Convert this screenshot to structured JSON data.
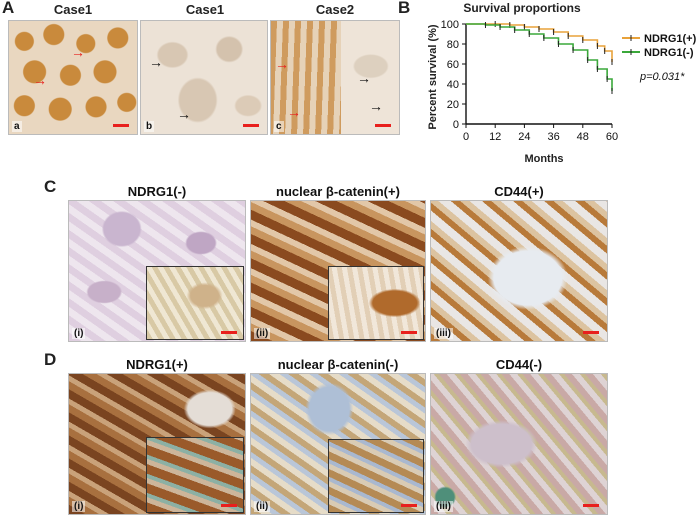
{
  "panel_a": {
    "letter": "A",
    "images": [
      {
        "title": "Case1",
        "sub": "a"
      },
      {
        "title": "Case1",
        "sub": "b"
      },
      {
        "title": "Case2",
        "sub": "c"
      }
    ]
  },
  "panel_b": {
    "letter": "B",
    "chart_data": {
      "type": "line",
      "title": "Survival proportions",
      "xlabel": "Months",
      "ylabel": "Percent survival (%)",
      "xlim": [
        0,
        60
      ],
      "ylim": [
        0,
        100
      ],
      "xticks": [
        "0",
        "12",
        "24",
        "36",
        "48",
        "60"
      ],
      "yticks": [
        "0",
        "20",
        "40",
        "60",
        "80",
        "100"
      ],
      "legend_position": "top-right",
      "annotation": "p=0.031*",
      "series": [
        {
          "name": "NDRG1(+)",
          "color": "#e8a23a",
          "points": [
            [
              0,
              100
            ],
            [
              12,
              100
            ],
            [
              18,
              99
            ],
            [
              24,
              97
            ],
            [
              30,
              95
            ],
            [
              36,
              92
            ],
            [
              42,
              88
            ],
            [
              48,
              84
            ],
            [
              54,
              78
            ],
            [
              57,
              73
            ],
            [
              60,
              62
            ]
          ]
        },
        {
          "name": "NDRG1(-)",
          "color": "#3aa83a",
          "points": [
            [
              0,
              100
            ],
            [
              8,
              99
            ],
            [
              14,
              97
            ],
            [
              20,
              94
            ],
            [
              26,
              90
            ],
            [
              32,
              86
            ],
            [
              38,
              80
            ],
            [
              44,
              74
            ],
            [
              50,
              64
            ],
            [
              54,
              55
            ],
            [
              58,
              45
            ],
            [
              60,
              33
            ]
          ]
        }
      ]
    }
  },
  "panel_c": {
    "letter": "C",
    "images": [
      {
        "title": "NDRG1(-)",
        "sub": "(i)"
      },
      {
        "title": "nuclear β-catenin(+)",
        "sub": "(ii)"
      },
      {
        "title": "CD44(+)",
        "sub": "(iii)"
      }
    ]
  },
  "panel_d": {
    "letter": "D",
    "images": [
      {
        "title": "NDRG1(+)",
        "sub": "(i)"
      },
      {
        "title": "nuclear β-catenin(-)",
        "sub": "(ii)"
      },
      {
        "title": "CD44(-)",
        "sub": "(iii)"
      }
    ]
  }
}
